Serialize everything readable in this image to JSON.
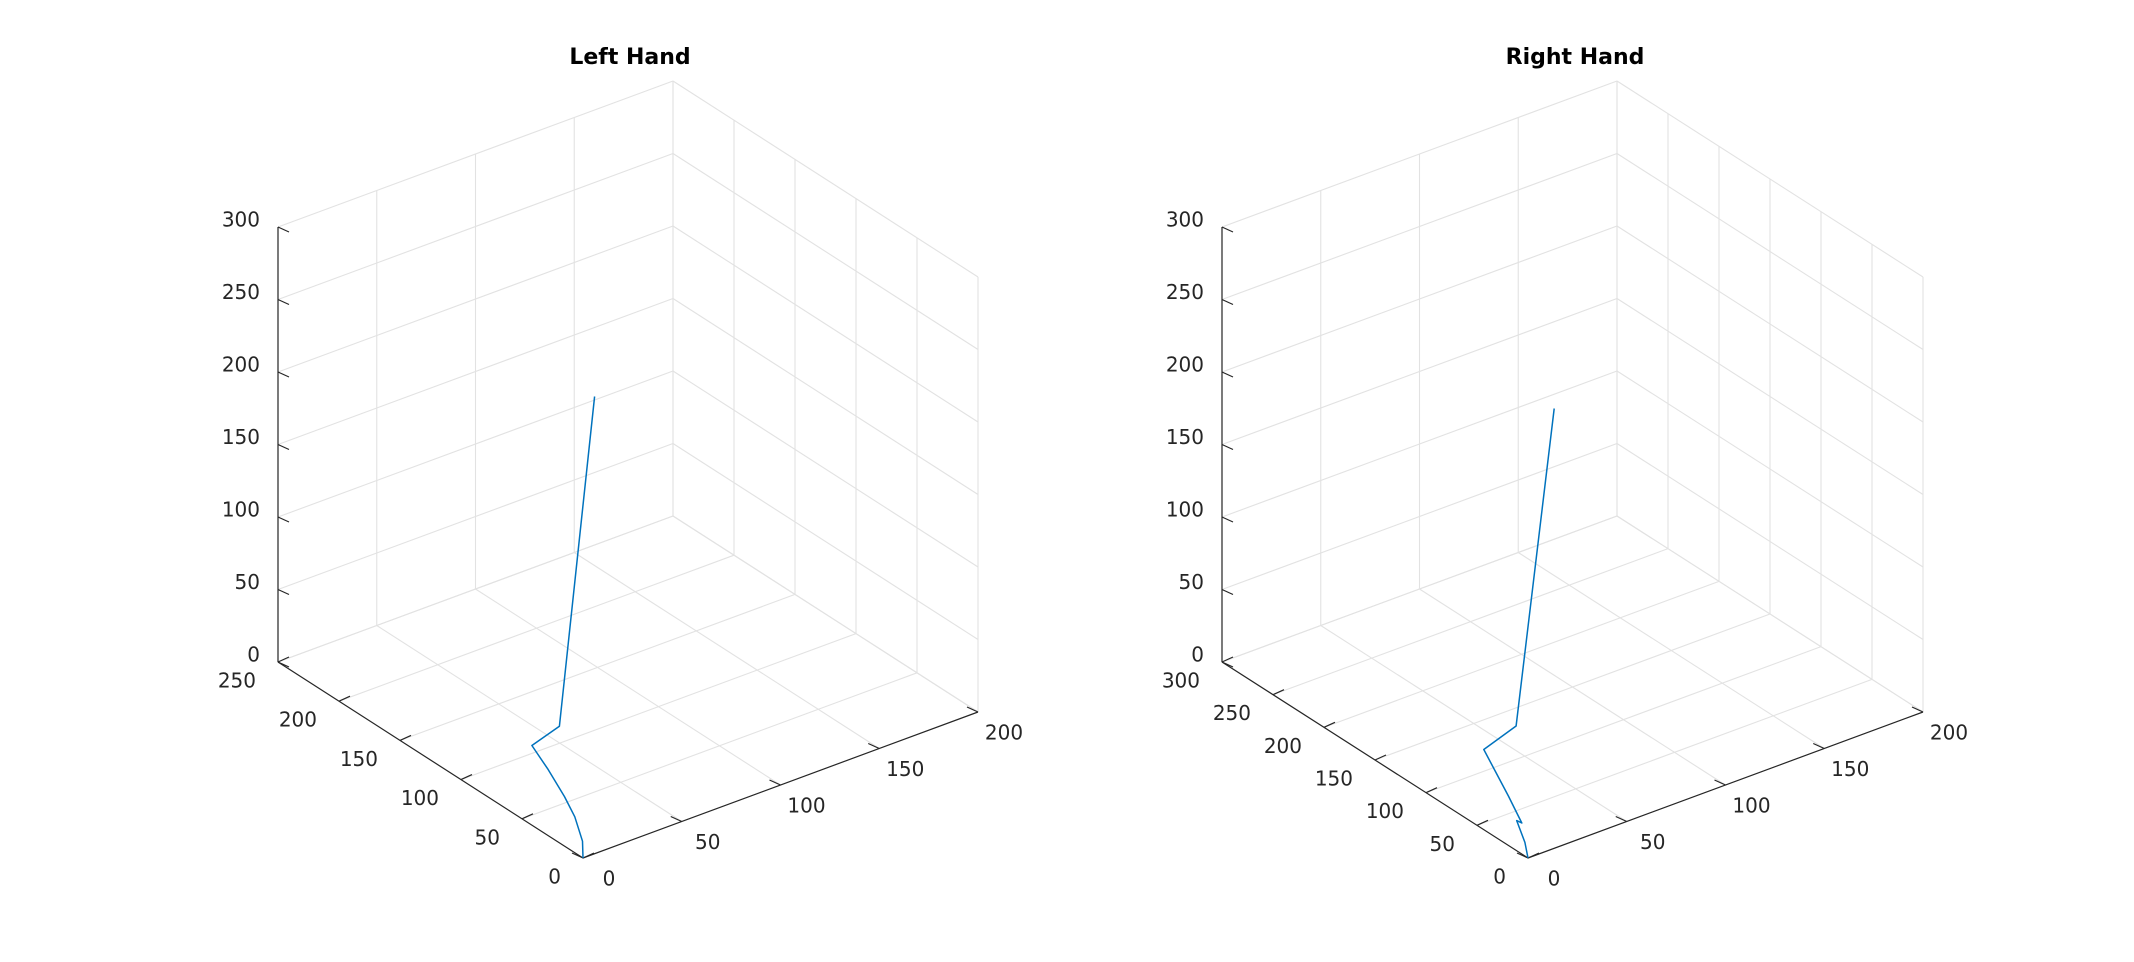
{
  "chart_data": [
    {
      "type": "line3d",
      "title": "Left Hand",
      "xlabel": "",
      "ylabel": "",
      "zlabel": "",
      "grid": true,
      "xlim": [
        0,
        200
      ],
      "ylim": [
        0,
        250
      ],
      "zlim": [
        0,
        300
      ],
      "xticks": [
        0,
        50,
        100,
        150,
        200
      ],
      "yticks": [
        0,
        50,
        100,
        150,
        200,
        250
      ],
      "zticks": [
        0,
        50,
        100,
        150,
        200,
        250,
        300
      ],
      "series": [
        {
          "color": "#0072bd",
          "x": [
            0,
            1,
            2,
            3,
            4,
            5,
            22,
            46
          ],
          "y": [
            0,
            2,
            10,
            20,
            35,
            50,
            55,
            65
          ],
          "z": [
            0,
            10,
            22,
            30,
            40,
            48,
            50,
            260
          ]
        }
      ]
    },
    {
      "type": "line3d",
      "title": "Right Hand",
      "xlabel": "",
      "ylabel": "",
      "zlabel": "",
      "grid": true,
      "xlim": [
        0,
        200
      ],
      "ylim": [
        0,
        300
      ],
      "zlim": [
        0,
        300
      ],
      "xticks": [
        0,
        50,
        100,
        150,
        200
      ],
      "yticks": [
        0,
        50,
        100,
        150,
        200,
        250,
        300
      ],
      "zticks": [
        0,
        50,
        100,
        150,
        200,
        250,
        300
      ],
      "series": [
        {
          "color": "#0072bd",
          "x": [
            0,
            1,
            2,
            1,
            3,
            4,
            6,
            26,
            52
          ],
          "y": [
            0,
            5,
            15,
            8,
            25,
            40,
            55,
            62,
            75
          ],
          "z": [
            0,
            8,
            18,
            20,
            30,
            40,
            47,
            50,
            250
          ]
        }
      ]
    }
  ]
}
